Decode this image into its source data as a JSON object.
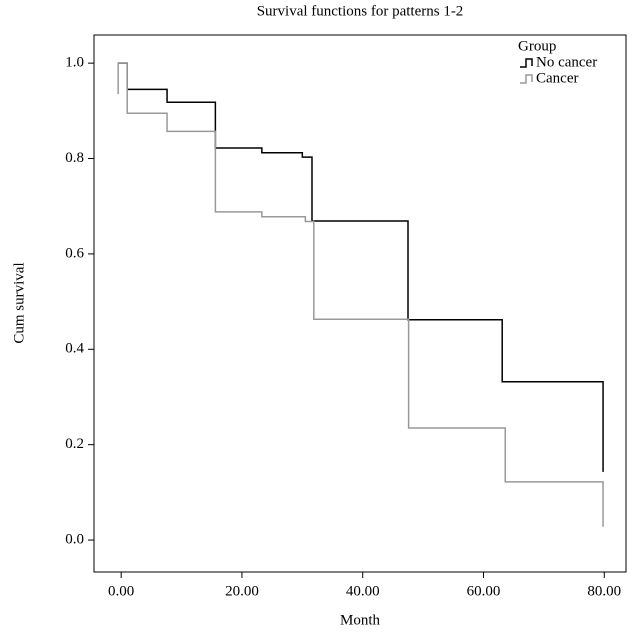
{
  "chart_data": {
    "type": "step",
    "title": "Survival functions for patterns 1-2",
    "x_label": "Month",
    "y_label": "Cum survival",
    "legend_title": "Group",
    "legend_position": "top-right",
    "xlim": [
      -4.5,
      83.6
    ],
    "ylim": [
      -0.067,
      1.059
    ],
    "xticks": [
      {
        "value": 0,
        "label": "0.00"
      },
      {
        "value": 20,
        "label": "20.00"
      },
      {
        "value": 40,
        "label": "40.00"
      },
      {
        "value": 60,
        "label": "60.00"
      },
      {
        "value": 80,
        "label": "80.00"
      }
    ],
    "yticks": [
      {
        "value": 0,
        "label": "0.0"
      },
      0.2,
      0.4,
      0.6,
      0.8,
      {
        "value": 1,
        "label": "1.0"
      }
    ],
    "series": [
      {
        "name": "No cancer",
        "color": "#000000",
        "x": [
          -0.5,
          1,
          7.6,
          15.6,
          23.3,
          30,
          31.6,
          47.5,
          63.1,
          79.8
        ],
        "values": [
          1.0,
          0.945,
          0.918,
          0.822,
          0.812,
          0.803,
          0.669,
          0.462,
          0.332,
          0.143
        ]
      },
      {
        "name": "Cancer",
        "color": "#999999",
        "x": [
          -0.5,
          -0.5,
          1,
          7.6,
          15.6,
          23.3,
          30.5,
          31.9,
          47.6,
          63.6,
          79.8
        ],
        "values": [
          0.935,
          1.0,
          0.895,
          0.857,
          0.688,
          0.678,
          0.668,
          0.463,
          0.235,
          0.122,
          0.028
        ]
      }
    ]
  }
}
